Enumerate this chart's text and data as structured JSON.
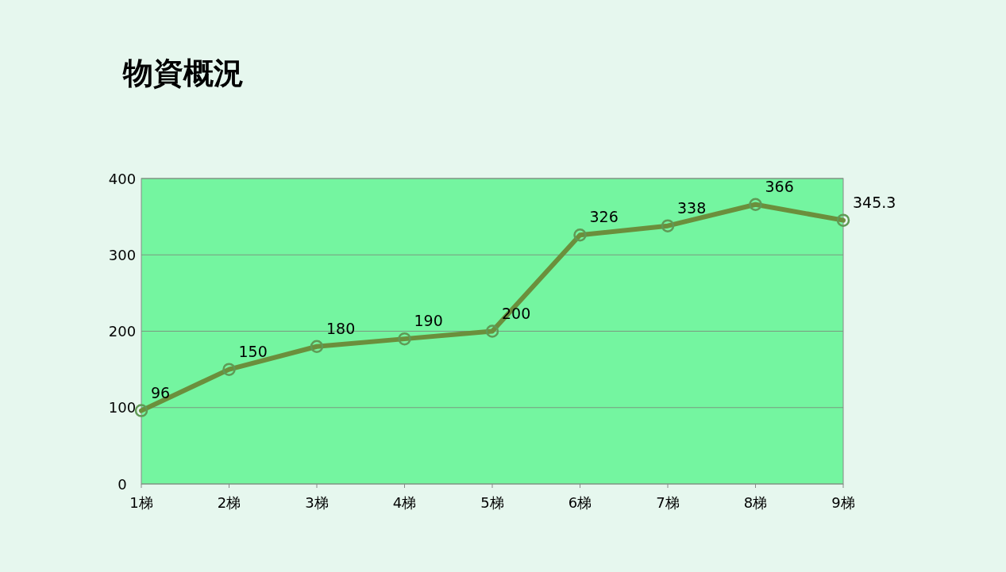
{
  "chart_data": {
    "type": "line",
    "title": "物資概況",
    "categories": [
      "1梯",
      "2梯",
      "3梯",
      "4梯",
      "5梯",
      "6梯",
      "7梯",
      "8梯",
      "9梯"
    ],
    "series": [
      {
        "color": "#6b8f3c",
        "values": [
          96,
          150,
          180,
          190,
          200,
          326,
          338,
          366,
          345.3
        ]
      }
    ],
    "ylim": [
      0,
      400
    ],
    "yticks": [
      0,
      100,
      200,
      300,
      400
    ],
    "grid": "y",
    "data_labels": true,
    "marker": "circle",
    "line_style": "solid"
  }
}
